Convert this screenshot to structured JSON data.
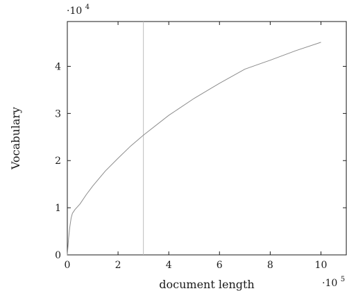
{
  "chart_data": {
    "type": "line",
    "xlabel": "document length",
    "ylabel": "Vocabulary",
    "x_scale_label": {
      "base": "·10",
      "exponent": "5"
    },
    "y_scale_label": {
      "base": "·10",
      "exponent": "4"
    },
    "xlim": [
      0,
      11
    ],
    "ylim": [
      0,
      4.95
    ],
    "x_ticks": [
      0,
      2,
      4,
      6,
      8,
      10
    ],
    "y_ticks": [
      0,
      1,
      2,
      3,
      4
    ],
    "x_tick_labels": [
      "0",
      "2",
      "4",
      "6",
      "8",
      "10"
    ],
    "y_tick_labels": [
      "0",
      "1",
      "2",
      "3",
      "4"
    ],
    "grid": false,
    "vertical_line": {
      "x": 3,
      "color": "#bdbdbd"
    },
    "series": [
      {
        "color": "#8c8c8c",
        "x": [
          0,
          0.05,
          0.1,
          0.15,
          0.2,
          0.25,
          0.3,
          0.5,
          0.75,
          1,
          1.5,
          2,
          2.5,
          3,
          4,
          5,
          6,
          7,
          8,
          9,
          10
        ],
        "y": [
          0,
          0.35,
          0.6,
          0.78,
          0.88,
          0.92,
          0.96,
          1.08,
          1.28,
          1.46,
          1.78,
          2.05,
          2.31,
          2.54,
          2.96,
          3.32,
          3.64,
          3.94,
          4.13,
          4.33,
          4.51
        ]
      }
    ]
  }
}
